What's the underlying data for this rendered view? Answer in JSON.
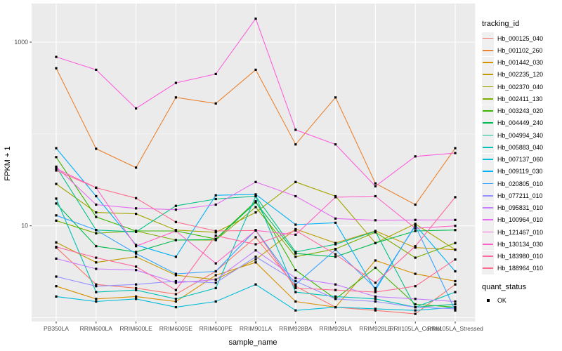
{
  "figure": {
    "kind": "ggplot-line-plot",
    "background": "#ffffff",
    "panel_background": "#ebebeb",
    "grid_color": "#ffffff",
    "point_color": "#000000",
    "tick_color": "#333333",
    "tick_label_color": "#4d4d4d"
  },
  "axes": {
    "x_title": "sample_name",
    "y_title": "FPKM + 1",
    "y_tick_labels": [
      "1000",
      "10"
    ]
  },
  "legend": {
    "tracking_title": "tracking_id",
    "quant_title": "quant_status",
    "quant_items": [
      {
        "label": "OK"
      }
    ]
  },
  "chart_data": {
    "type": "line",
    "title": "",
    "xlabel": "sample_name",
    "ylabel": "FPKM + 1",
    "y_scale": "log10",
    "y_breaks": [
      10,
      1000
    ],
    "y_minor_breaks": [
      1,
      100
    ],
    "ylim": [
      0.91,
      2600
    ],
    "grid": "on",
    "legend_position": "right",
    "point_shape": "black-square",
    "quant_status_value": "OK",
    "categories": [
      "PB350LA",
      "RRIM600LA",
      "RRIM600LE",
      "RRIM600SE",
      "RRIM600PE",
      "RRIM901LA",
      "RRIM928BA",
      "RRIM928LA",
      "RRIM928LE",
      "RRII105LA_Control",
      "RRII105LA_Stressed"
    ],
    "series": [
      {
        "name": "Hb_000125_040",
        "color": "#F8766D",
        "values": [
          5.8,
          2.3,
          2.1,
          1.8,
          3.2,
          7.5,
          2.2,
          1.3,
          1.2,
          1.1,
          2.3
        ]
      },
      {
        "name": "Hb_001102_260",
        "color": "#EA8331",
        "values": [
          520,
          69,
          43,
          250,
          215,
          500,
          77,
          250,
          29,
          17,
          70
        ]
      },
      {
        "name": "Hb_001442_030",
        "color": "#D89000",
        "values": [
          2.2,
          1.6,
          1.7,
          1.5,
          2.9,
          4.0,
          1.5,
          1.3,
          4.2,
          3.0,
          2.5
        ]
      },
      {
        "name": "Hb_002235_120",
        "color": "#C09B00",
        "values": [
          6.6,
          4.0,
          4.6,
          2.9,
          2.6,
          4.3,
          9.2,
          6.5,
          8.8,
          5.8,
          5.5
        ]
      },
      {
        "name": "Hb_002370_040",
        "color": "#A3A500",
        "values": [
          28.6,
          14,
          13.5,
          9.0,
          8.5,
          14,
          30,
          21,
          6.5,
          10.5,
          5.5
        ]
      },
      {
        "name": "Hb_002411_130",
        "color": "#7CAE00",
        "values": [
          11.4,
          8.3,
          8.8,
          7.0,
          7.0,
          16,
          4.6,
          5.6,
          8.5,
          4.5,
          6.5
        ]
      },
      {
        "name": "Hb_003243_020",
        "color": "#39B600",
        "values": [
          56,
          12.5,
          8.8,
          8.8,
          7.2,
          18.5,
          3.3,
          1.6,
          3.5,
          1.4,
          1.3
        ]
      },
      {
        "name": "Hb_004449_240",
        "color": "#00BB4E",
        "values": [
          17.5,
          6.0,
          5.2,
          7.0,
          7.1,
          18,
          5.0,
          4.6,
          6.5,
          8.8,
          9.0
        ]
      },
      {
        "name": "Hb_004994_340",
        "color": "#00C087",
        "values": [
          44,
          9.0,
          8.6,
          16.5,
          19.6,
          21,
          5.2,
          6.3,
          8.7,
          1.3,
          1.4
        ]
      },
      {
        "name": "Hb_005883_040",
        "color": "#00C0B8",
        "values": [
          19.8,
          1.9,
          2.0,
          1.6,
          2.1,
          21,
          1.9,
          1.7,
          1.6,
          1.3,
          1.9
        ]
      },
      {
        "name": "Hb_007137_060",
        "color": "#00BCD8",
        "values": [
          1.7,
          1.5,
          1.6,
          1.3,
          1.5,
          2.3,
          1.2,
          1.3,
          1.25,
          1.2,
          1.3
        ]
      },
      {
        "name": "Hb_009119_030",
        "color": "#00B0F6",
        "values": [
          70,
          21,
          6.2,
          4.6,
          21.5,
          22,
          10.3,
          10.8,
          2.0,
          10.2,
          3.2
        ]
      },
      {
        "name": "Hb_020805_010",
        "color": "#35A2FF",
        "values": [
          13,
          9.0,
          5.0,
          3.0,
          3.2,
          9.0,
          2.3,
          5.5,
          2.1,
          10.0,
          1.2
        ]
      },
      {
        "name": "Hb_077211_010",
        "color": "#9590FF",
        "values": [
          2.8,
          2.2,
          2.3,
          2.5,
          2.4,
          4.6,
          2.5,
          1.6,
          1.5,
          1.3,
          1.25
        ]
      },
      {
        "name": "Hb_095831_010",
        "color": "#C77CFF",
        "values": [
          4.4,
          3.4,
          3.3,
          2.4,
          2.6,
          5.4,
          2.7,
          2.3,
          1.7,
          1.6,
          1.5
        ]
      },
      {
        "name": "Hb_100964_010",
        "color": "#E76BF3",
        "values": [
          44,
          17,
          15.5,
          15,
          17,
          30,
          21,
          12,
          11.5,
          11.6,
          11.6
        ]
      },
      {
        "name": "Hb_121467_010",
        "color": "#FA62DB",
        "values": [
          690,
          500,
          190,
          360,
          450,
          1800,
          111,
          77,
          27,
          57,
          62
        ]
      },
      {
        "name": "Hb_130134_030",
        "color": "#FF61C9",
        "values": [
          42,
          26,
          6.0,
          8.8,
          3.9,
          8.9,
          8.0,
          20.5,
          21,
          9.4,
          10
        ]
      },
      {
        "name": "Hb_183980_010",
        "color": "#FF68A1",
        "values": [
          5.9,
          4.5,
          3.6,
          2.0,
          7.8,
          6.3,
          8.9,
          4.9,
          2.4,
          6.0,
          20.5
        ]
      },
      {
        "name": "Hb_188964_010",
        "color": "#FF6C90",
        "values": [
          40,
          26,
          20,
          11,
          8.8,
          8.9,
          2.1,
          2.0,
          1.9,
          2.2,
          4.3
        ]
      }
    ]
  }
}
